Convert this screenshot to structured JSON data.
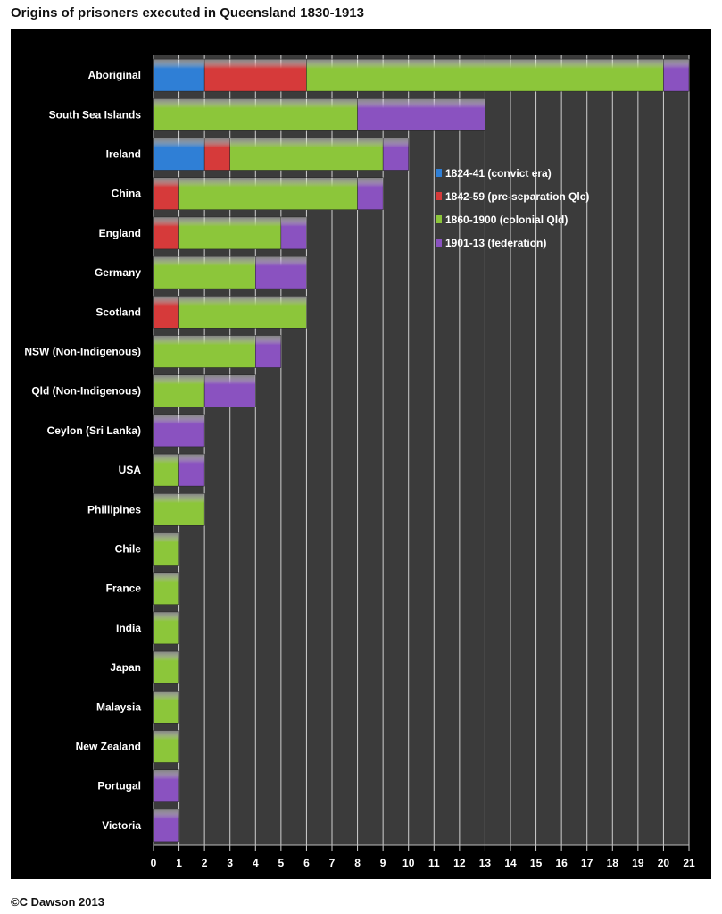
{
  "chart_data": {
    "type": "bar",
    "orientation": "horizontal",
    "stacked": true,
    "title": "Origins of prisoners executed in Queensland 1830-1913",
    "xlabel": "",
    "ylabel": "",
    "xlim": [
      0,
      21
    ],
    "xticks": [
      0,
      1,
      2,
      3,
      4,
      5,
      6,
      7,
      8,
      9,
      10,
      11,
      12,
      13,
      14,
      15,
      16,
      17,
      18,
      19,
      20,
      21
    ],
    "grid": true,
    "legend_position": "right-middle",
    "categories": [
      "Aboriginal",
      "South Sea Islands",
      "Ireland",
      "China",
      "England",
      "Germany",
      "Scotland",
      "NSW (Non-Indigenous)",
      "Qld (Non-Indigenous)",
      "Ceylon (Sri Lanka)",
      "USA",
      "Phillipines",
      "Chile",
      "France",
      "India",
      "Japan",
      "Malaysia",
      "New Zealand",
      "Portugal",
      "Victoria"
    ],
    "series": [
      {
        "name": "1824-41 (convict era)",
        "color": "#2f7fd6",
        "values": [
          2,
          0,
          2,
          0,
          0,
          0,
          0,
          0,
          0,
          0,
          0,
          0,
          0,
          0,
          0,
          0,
          0,
          0,
          0,
          0
        ]
      },
      {
        "name": "1842-59 (pre-separation Qlc)",
        "color": "#d63a3a",
        "values": [
          4,
          0,
          1,
          1,
          1,
          0,
          1,
          0,
          0,
          0,
          0,
          0,
          0,
          0,
          0,
          0,
          0,
          0,
          0,
          0
        ]
      },
      {
        "name": "1860-1900 (colonial Qld)",
        "color": "#8cc63a",
        "values": [
          14,
          8,
          6,
          7,
          4,
          4,
          5,
          4,
          2,
          0,
          1,
          2,
          1,
          1,
          1,
          1,
          1,
          1,
          0,
          0
        ]
      },
      {
        "name": "1901-13 (federation)",
        "color": "#8a52c0",
        "values": [
          1,
          5,
          1,
          1,
          1,
          2,
          0,
          1,
          2,
          2,
          1,
          0,
          0,
          0,
          0,
          0,
          0,
          0,
          1,
          1
        ]
      }
    ]
  },
  "credit": "©C Dawson 2013"
}
